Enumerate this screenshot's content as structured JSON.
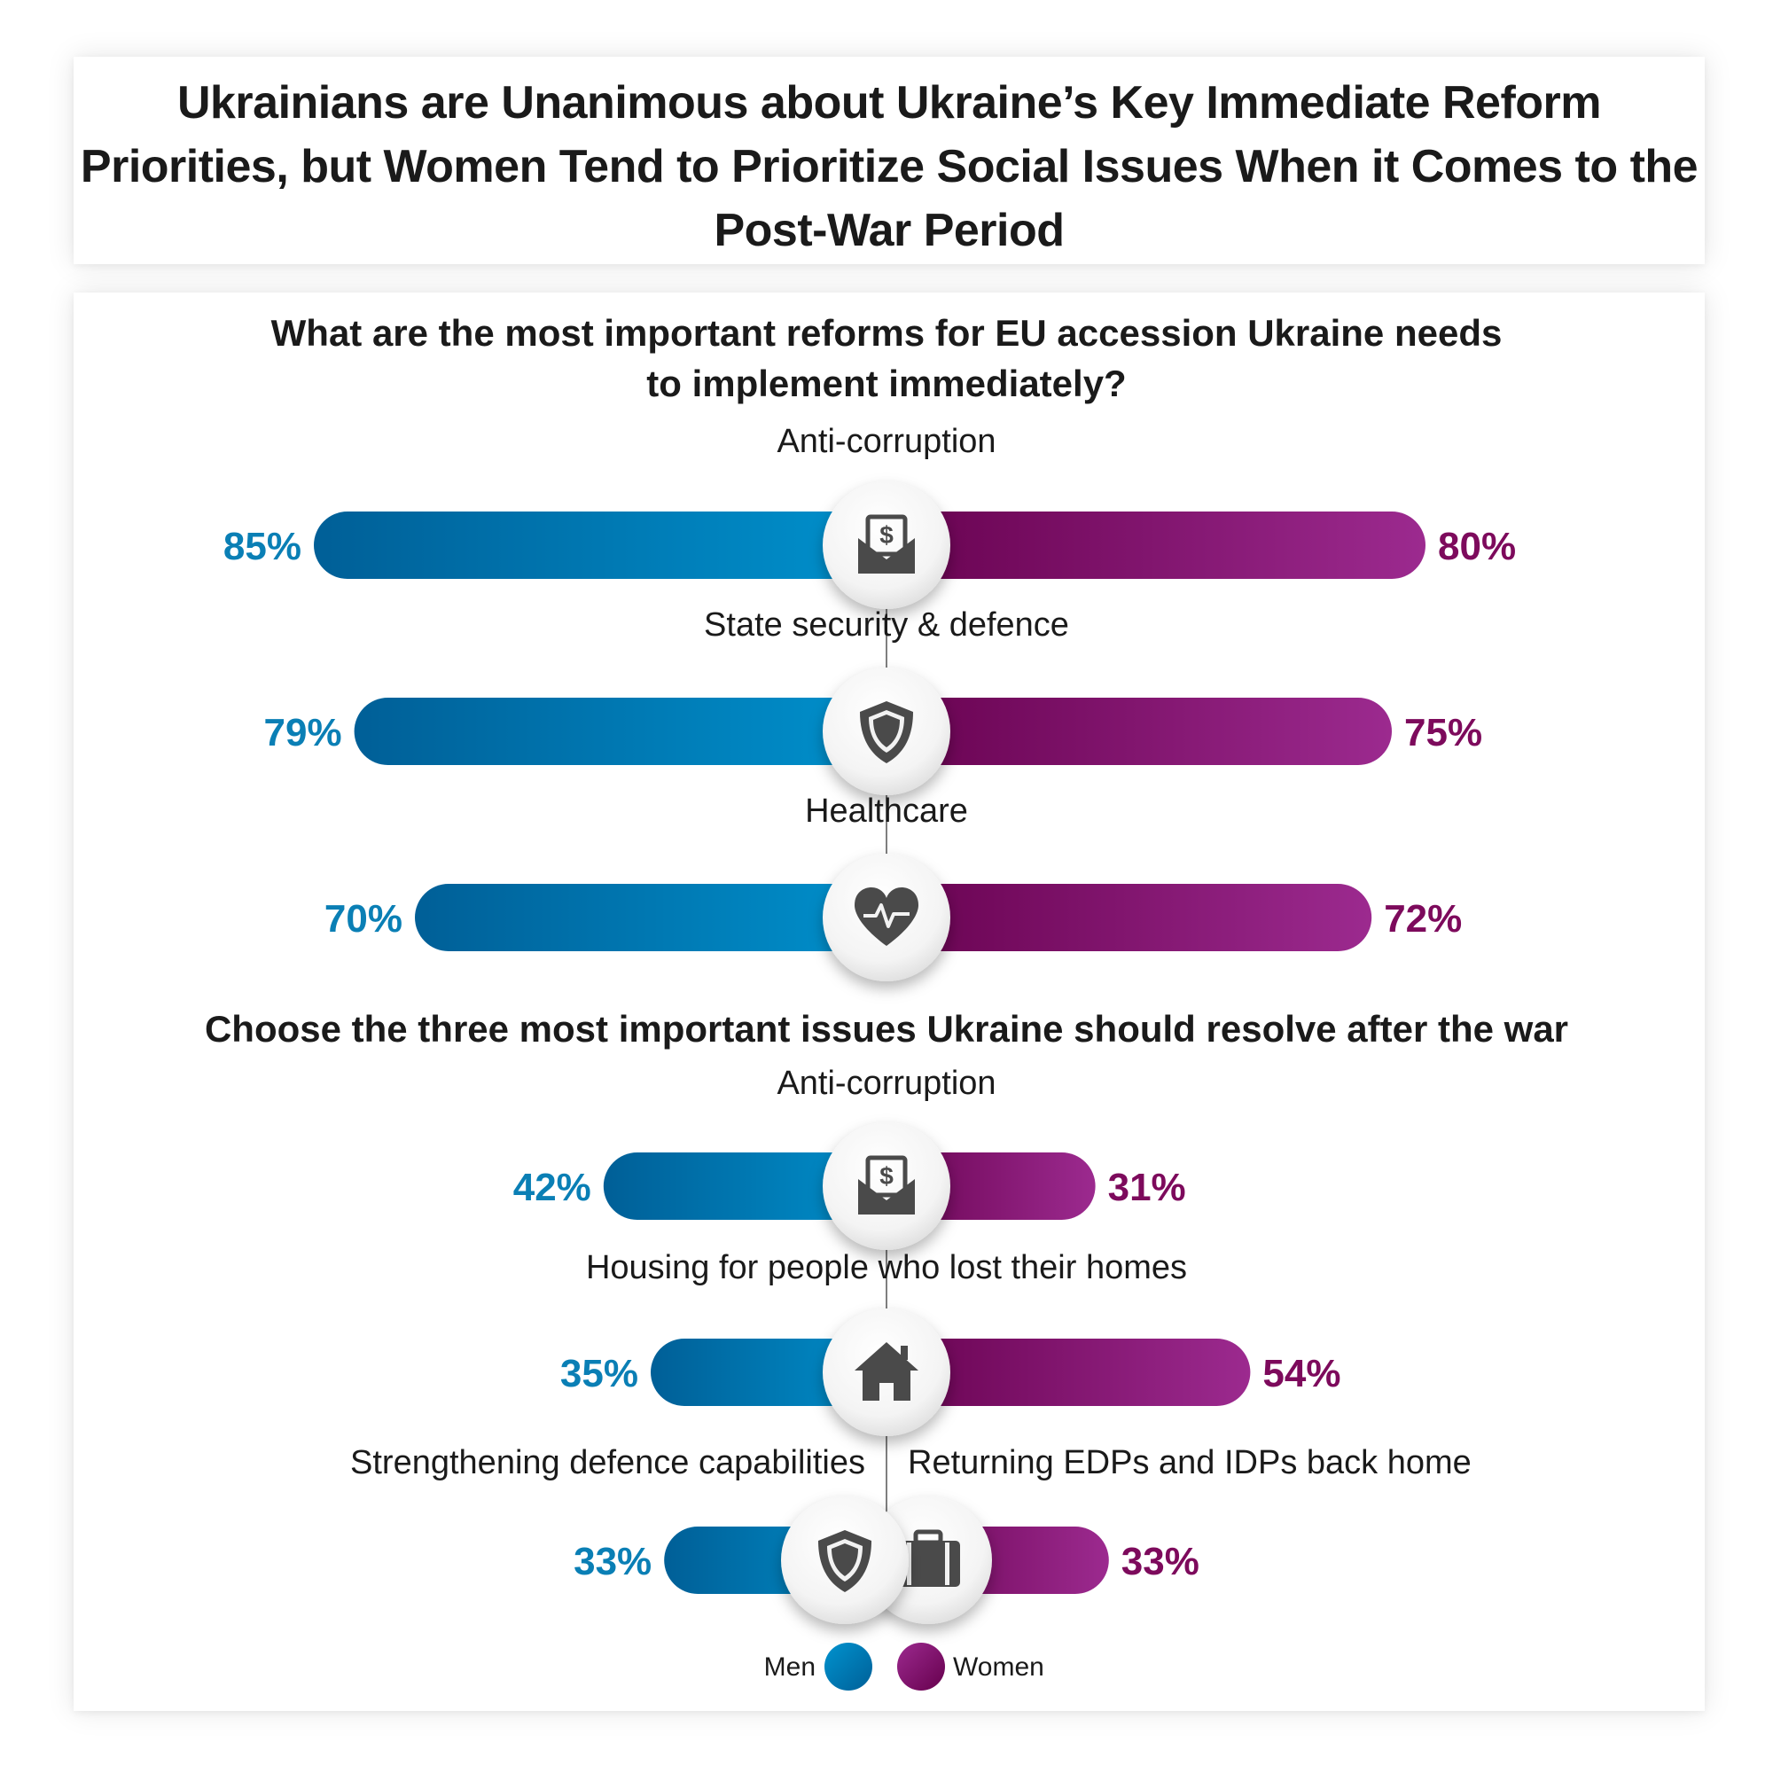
{
  "title_lines": [
    "Ukrainians are Unanimous about Ukraine’s Key Immediate Reform",
    "Priorities, but Women Tend to Prioritize Social Issues When it Comes to the",
    "Post-War Period"
  ],
  "colors": {
    "men_dark": "#005f97",
    "men_light": "#0093cf",
    "women_dark": "#66004d",
    "women_light": "#9c2a8f",
    "men_text": "#0a7fb5",
    "women_text": "#7d0a5c",
    "icon": "#4a4a4a"
  },
  "chart_data": [
    {
      "type": "bar",
      "title_lines": [
        "What are the most important reforms for EU accession Ukraine needs",
        "to implement immediately?"
      ],
      "series": [
        {
          "name": "Men",
          "values": [
            85,
            79,
            70
          ]
        },
        {
          "name": "Women",
          "values": [
            80,
            75,
            72
          ]
        }
      ],
      "categories": [
        "Anti-corruption",
        "State security & defence",
        "Healthcare"
      ],
      "labels": {
        "men": [
          "85%",
          "79%",
          "70%"
        ],
        "women": [
          "80%",
          "75%",
          "72%"
        ]
      },
      "icons": [
        "money-envelope-icon",
        "shield-icon",
        "heart-pulse-icon"
      ],
      "unit": "%"
    },
    {
      "type": "bar",
      "title_lines": [
        "Choose the three most important issues Ukraine should resolve after the war"
      ],
      "series": [
        {
          "name": "Men",
          "values": [
            42,
            35,
            33
          ]
        },
        {
          "name": "Women",
          "values": [
            31,
            54,
            33
          ]
        }
      ],
      "categories": [
        "Anti-corruption",
        "Housing for people who lost their homes",
        [
          "Strengthening defence capabilities",
          "Returning EDPs and IDPs back home"
        ]
      ],
      "labels": {
        "men": [
          "42%",
          "35%",
          "33%"
        ],
        "women": [
          "31%",
          "54%",
          "33%"
        ]
      },
      "icons": [
        "money-envelope-icon",
        "house-icon",
        [
          "shield-icon",
          "suitcase-icon"
        ]
      ],
      "unit": "%"
    }
  ],
  "legend": {
    "men": "Men",
    "women": "Women"
  }
}
